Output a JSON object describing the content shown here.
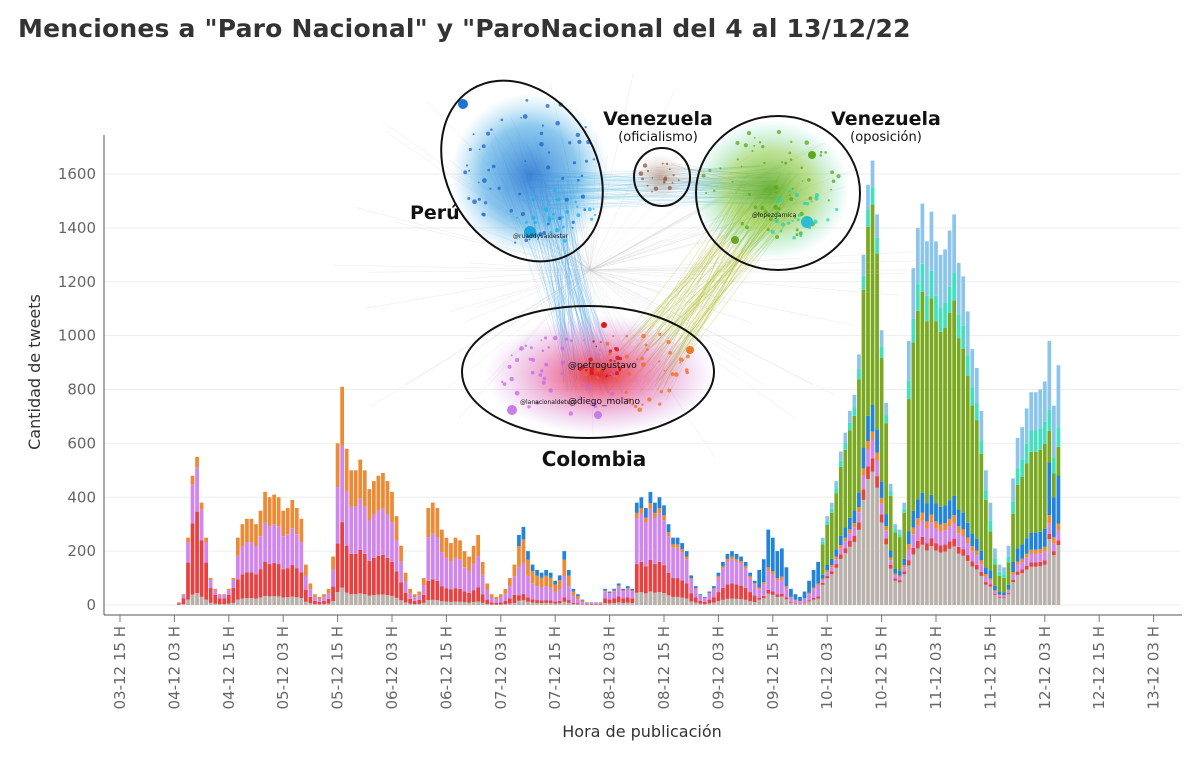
{
  "title": "Menciones a  \"Paro Nacional\" y \"ParoNacional del 4 al 13/12/22",
  "chart_data": {
    "type": "bar",
    "stacked": true,
    "xlabel": "Hora de publicación",
    "ylabel": "Cantidad de tweets",
    "ylim": [
      0,
      1750
    ],
    "yticks": [
      0,
      200,
      400,
      600,
      800,
      1000,
      1200,
      1400,
      1600
    ],
    "grid": true,
    "x_tick_labels": [
      "03-12 15 H",
      "04-12 03 H",
      "04-12 15 H",
      "05-12 03 H",
      "05-12 15 H",
      "06-12 03 H",
      "06-12 15 H",
      "07-12 03 H",
      "07-12 15 H",
      "08-12 03 H",
      "08-12 15 H",
      "09-12 03 H",
      "09-12 15 H",
      "10-12 03 H",
      "10-12 15 H",
      "11-12 03 H",
      "11-12 15 H",
      "12-12 03 H",
      "12-12 15 H",
      "13-12 03 H"
    ],
    "hours_per_tick": 12,
    "first_bar_offset_hours": 6,
    "series_colors": [
      "#b9b1ab",
      "#e84141",
      "#cf86ed",
      "#ed8a35",
      "#2283dc",
      "#7aa821",
      "#44e0bd",
      "#8cc5ec"
    ],
    "stack_profiles": {
      "A": [
        0.08,
        0.55,
        0.3,
        0.07,
        0,
        0,
        0,
        0
      ],
      "B": [
        0.08,
        0.3,
        0.35,
        0.27,
        0,
        0,
        0,
        0
      ],
      "C": [
        0.05,
        0.2,
        0.45,
        0.3,
        0,
        0,
        0,
        0
      ],
      "D": [
        0.06,
        0.08,
        0.4,
        0.3,
        0.16,
        0,
        0,
        0
      ],
      "E": [
        0.12,
        0.28,
        0.45,
        0.05,
        0.1,
        0,
        0,
        0
      ],
      "F": [
        0.15,
        0.05,
        0.25,
        0.05,
        0.5,
        0,
        0,
        0
      ],
      "G": [
        0.3,
        0.03,
        0.04,
        0.02,
        0.06,
        0.45,
        0.04,
        0.06
      ],
      "H": [
        0.15,
        0.02,
        0.04,
        0.02,
        0.05,
        0.5,
        0.07,
        0.15
      ],
      "I": [
        0.18,
        0.02,
        0.04,
        0.02,
        0.08,
        0.38,
        0.1,
        0.18
      ],
      "J": [
        0.25,
        0.02,
        0.04,
        0.03,
        0.2,
        0.12,
        0.08,
        0.26
      ]
    },
    "bars": [
      {
        "v": 0,
        "p": "A"
      },
      {
        "v": 0,
        "p": "A"
      },
      {
        "v": 0,
        "p": "A"
      },
      {
        "v": 0,
        "p": "A"
      },
      {
        "v": 0,
        "p": "A"
      },
      {
        "v": 0,
        "p": "A"
      },
      {
        "v": 0,
        "p": "A"
      },
      {
        "v": 10,
        "p": "A"
      },
      {
        "v": 40,
        "p": "A"
      },
      {
        "v": 250,
        "p": "A"
      },
      {
        "v": 480,
        "p": "A"
      },
      {
        "v": 550,
        "p": "A"
      },
      {
        "v": 380,
        "p": "A"
      },
      {
        "v": 250,
        "p": "A"
      },
      {
        "v": 100,
        "p": "A"
      },
      {
        "v": 60,
        "p": "A"
      },
      {
        "v": 40,
        "p": "A"
      },
      {
        "v": 40,
        "p": "A"
      },
      {
        "v": 60,
        "p": "A"
      },
      {
        "v": 100,
        "p": "A"
      },
      {
        "v": 250,
        "p": "B"
      },
      {
        "v": 300,
        "p": "B"
      },
      {
        "v": 320,
        "p": "B"
      },
      {
        "v": 320,
        "p": "B"
      },
      {
        "v": 300,
        "p": "B"
      },
      {
        "v": 350,
        "p": "B"
      },
      {
        "v": 420,
        "p": "B"
      },
      {
        "v": 400,
        "p": "B"
      },
      {
        "v": 410,
        "p": "B"
      },
      {
        "v": 400,
        "p": "B"
      },
      {
        "v": 350,
        "p": "B"
      },
      {
        "v": 360,
        "p": "B"
      },
      {
        "v": 390,
        "p": "B"
      },
      {
        "v": 360,
        "p": "B"
      },
      {
        "v": 320,
        "p": "B"
      },
      {
        "v": 150,
        "p": "B"
      },
      {
        "v": 80,
        "p": "B"
      },
      {
        "v": 40,
        "p": "B"
      },
      {
        "v": 30,
        "p": "B"
      },
      {
        "v": 40,
        "p": "B"
      },
      {
        "v": 60,
        "p": "B"
      },
      {
        "v": 180,
        "p": "B"
      },
      {
        "v": 600,
        "p": "B"
      },
      {
        "v": 810,
        "p": "B"
      },
      {
        "v": 580,
        "p": "B"
      },
      {
        "v": 500,
        "p": "B"
      },
      {
        "v": 500,
        "p": "B"
      },
      {
        "v": 540,
        "p": "B"
      },
      {
        "v": 500,
        "p": "B"
      },
      {
        "v": 430,
        "p": "B"
      },
      {
        "v": 460,
        "p": "B"
      },
      {
        "v": 480,
        "p": "B"
      },
      {
        "v": 490,
        "p": "B"
      },
      {
        "v": 460,
        "p": "B"
      },
      {
        "v": 420,
        "p": "B"
      },
      {
        "v": 330,
        "p": "B"
      },
      {
        "v": 220,
        "p": "B"
      },
      {
        "v": 120,
        "p": "B"
      },
      {
        "v": 60,
        "p": "B"
      },
      {
        "v": 40,
        "p": "B"
      },
      {
        "v": 50,
        "p": "B"
      },
      {
        "v": 100,
        "p": "B"
      },
      {
        "v": 360,
        "p": "C"
      },
      {
        "v": 380,
        "p": "C"
      },
      {
        "v": 360,
        "p": "C"
      },
      {
        "v": 280,
        "p": "C"
      },
      {
        "v": 250,
        "p": "C"
      },
      {
        "v": 230,
        "p": "C"
      },
      {
        "v": 250,
        "p": "C"
      },
      {
        "v": 240,
        "p": "C"
      },
      {
        "v": 200,
        "p": "C"
      },
      {
        "v": 180,
        "p": "C"
      },
      {
        "v": 220,
        "p": "C"
      },
      {
        "v": 260,
        "p": "C"
      },
      {
        "v": 160,
        "p": "C"
      },
      {
        "v": 80,
        "p": "C"
      },
      {
        "v": 40,
        "p": "C"
      },
      {
        "v": 30,
        "p": "C"
      },
      {
        "v": 40,
        "p": "C"
      },
      {
        "v": 60,
        "p": "C"
      },
      {
        "v": 100,
        "p": "C"
      },
      {
        "v": 150,
        "p": "C"
      },
      {
        "v": 260,
        "p": "D"
      },
      {
        "v": 290,
        "p": "D"
      },
      {
        "v": 200,
        "p": "D"
      },
      {
        "v": 150,
        "p": "D"
      },
      {
        "v": 130,
        "p": "D"
      },
      {
        "v": 120,
        "p": "D"
      },
      {
        "v": 130,
        "p": "D"
      },
      {
        "v": 120,
        "p": "D"
      },
      {
        "v": 90,
        "p": "D"
      },
      {
        "v": 110,
        "p": "D"
      },
      {
        "v": 200,
        "p": "D"
      },
      {
        "v": 130,
        "p": "D"
      },
      {
        "v": 60,
        "p": "D"
      },
      {
        "v": 40,
        "p": "D"
      },
      {
        "v": 20,
        "p": "D"
      },
      {
        "v": 10,
        "p": "D"
      },
      {
        "v": 10,
        "p": "E"
      },
      {
        "v": 10,
        "p": "E"
      },
      {
        "v": 10,
        "p": "E"
      },
      {
        "v": 60,
        "p": "E"
      },
      {
        "v": 50,
        "p": "E"
      },
      {
        "v": 60,
        "p": "E"
      },
      {
        "v": 80,
        "p": "E"
      },
      {
        "v": 60,
        "p": "E"
      },
      {
        "v": 70,
        "p": "E"
      },
      {
        "v": 60,
        "p": "E"
      },
      {
        "v": 380,
        "p": "E"
      },
      {
        "v": 400,
        "p": "E"
      },
      {
        "v": 360,
        "p": "E"
      },
      {
        "v": 420,
        "p": "E"
      },
      {
        "v": 380,
        "p": "E"
      },
      {
        "v": 400,
        "p": "E"
      },
      {
        "v": 370,
        "p": "E"
      },
      {
        "v": 300,
        "p": "E"
      },
      {
        "v": 250,
        "p": "E"
      },
      {
        "v": 250,
        "p": "E"
      },
      {
        "v": 230,
        "p": "E"
      },
      {
        "v": 200,
        "p": "E"
      },
      {
        "v": 110,
        "p": "E"
      },
      {
        "v": 70,
        "p": "E"
      },
      {
        "v": 40,
        "p": "E"
      },
      {
        "v": 30,
        "p": "E"
      },
      {
        "v": 50,
        "p": "E"
      },
      {
        "v": 70,
        "p": "E"
      },
      {
        "v": 120,
        "p": "E"
      },
      {
        "v": 160,
        "p": "E"
      },
      {
        "v": 190,
        "p": "E"
      },
      {
        "v": 200,
        "p": "E"
      },
      {
        "v": 190,
        "p": "E"
      },
      {
        "v": 180,
        "p": "E"
      },
      {
        "v": 160,
        "p": "E"
      },
      {
        "v": 120,
        "p": "E"
      },
      {
        "v": 90,
        "p": "E"
      },
      {
        "v": 130,
        "p": "F"
      },
      {
        "v": 170,
        "p": "F"
      },
      {
        "v": 280,
        "p": "F"
      },
      {
        "v": 250,
        "p": "F"
      },
      {
        "v": 200,
        "p": "F"
      },
      {
        "v": 210,
        "p": "F"
      },
      {
        "v": 140,
        "p": "F"
      },
      {
        "v": 60,
        "p": "F"
      },
      {
        "v": 40,
        "p": "F"
      },
      {
        "v": 30,
        "p": "F"
      },
      {
        "v": 50,
        "p": "F"
      },
      {
        "v": 90,
        "p": "F"
      },
      {
        "v": 130,
        "p": "F"
      },
      {
        "v": 160,
        "p": "F"
      },
      {
        "v": 250,
        "p": "G"
      },
      {
        "v": 330,
        "p": "G"
      },
      {
        "v": 380,
        "p": "G"
      },
      {
        "v": 460,
        "p": "G"
      },
      {
        "v": 570,
        "p": "G"
      },
      {
        "v": 640,
        "p": "G"
      },
      {
        "v": 720,
        "p": "G"
      },
      {
        "v": 780,
        "p": "G"
      },
      {
        "v": 930,
        "p": "G"
      },
      {
        "v": 1300,
        "p": "G"
      },
      {
        "v": 1560,
        "p": "G"
      },
      {
        "v": 1650,
        "p": "G"
      },
      {
        "v": 1450,
        "p": "G"
      },
      {
        "v": 1020,
        "p": "G"
      },
      {
        "v": 750,
        "p": "G"
      },
      {
        "v": 450,
        "p": "G"
      },
      {
        "v": 300,
        "p": "G"
      },
      {
        "v": 280,
        "p": "G"
      },
      {
        "v": 380,
        "p": "G"
      },
      {
        "v": 980,
        "p": "H"
      },
      {
        "v": 1250,
        "p": "H"
      },
      {
        "v": 1400,
        "p": "H"
      },
      {
        "v": 1490,
        "p": "H"
      },
      {
        "v": 1350,
        "p": "H"
      },
      {
        "v": 1460,
        "p": "H"
      },
      {
        "v": 1350,
        "p": "H"
      },
      {
        "v": 1300,
        "p": "H"
      },
      {
        "v": 1320,
        "p": "H"
      },
      {
        "v": 1390,
        "p": "H"
      },
      {
        "v": 1450,
        "p": "H"
      },
      {
        "v": 1270,
        "p": "H"
      },
      {
        "v": 1220,
        "p": "H"
      },
      {
        "v": 1090,
        "p": "H"
      },
      {
        "v": 950,
        "p": "H"
      },
      {
        "v": 880,
        "p": "H"
      },
      {
        "v": 720,
        "p": "H"
      },
      {
        "v": 500,
        "p": "H"
      },
      {
        "v": 380,
        "p": "I"
      },
      {
        "v": 210,
        "p": "I"
      },
      {
        "v": 150,
        "p": "I"
      },
      {
        "v": 140,
        "p": "I"
      },
      {
        "v": 220,
        "p": "I"
      },
      {
        "v": 470,
        "p": "I"
      },
      {
        "v": 620,
        "p": "I"
      },
      {
        "v": 660,
        "p": "I"
      },
      {
        "v": 730,
        "p": "I"
      },
      {
        "v": 790,
        "p": "I"
      },
      {
        "v": 790,
        "p": "I"
      },
      {
        "v": 800,
        "p": "I"
      },
      {
        "v": 830,
        "p": "I"
      },
      {
        "v": 980,
        "p": "J"
      },
      {
        "v": 740,
        "p": "J"
      },
      {
        "v": 890,
        "p": "J"
      }
    ]
  },
  "annotations": {
    "peru": "Perú",
    "venezuela_of": "Venezuela",
    "venezuela_of_sub": "(oficialismo)",
    "venezuela_op": "Venezuela",
    "venezuela_op_sub": "(oposición)",
    "colombia": "Colombia",
    "handles": [
      "@petrogustavo",
      "@diego_molano",
      "@ruaddyvaidestar",
      "@lanacionaldetvco",
      "@lopezgarnica"
    ]
  }
}
